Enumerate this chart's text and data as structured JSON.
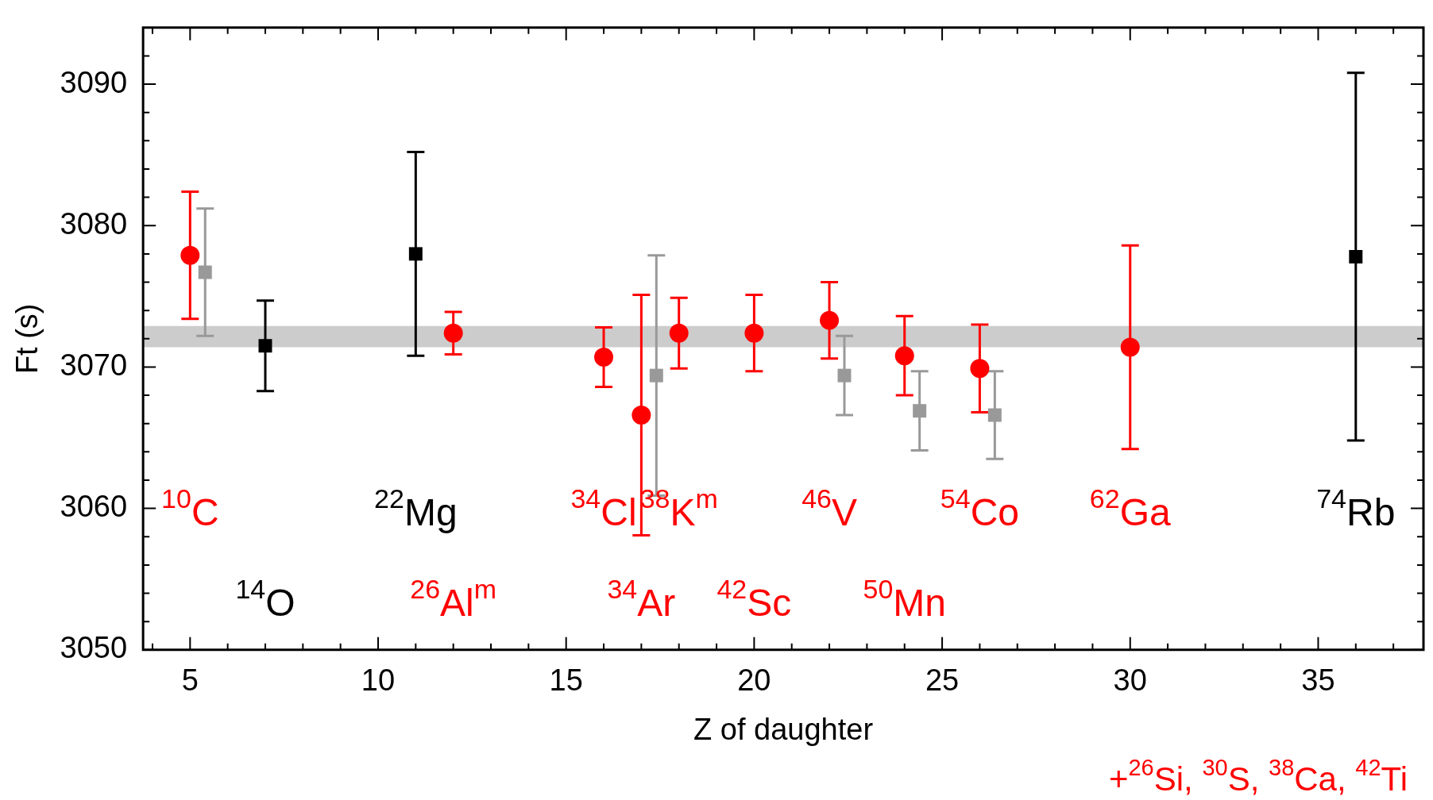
{
  "chart_data": {
    "type": "scatter",
    "xlabel": "Z of daughter",
    "ylabel": "Ft (s)",
    "xlim": [
      3.75,
      37.8
    ],
    "xticks": [
      {
        "value": 4,
        "label": null
      },
      5,
      {
        "value": 6,
        "label": null
      },
      {
        "value": 7,
        "label": null
      },
      {
        "value": 8,
        "label": null
      },
      {
        "value": 9,
        "label": null
      },
      10,
      {
        "value": 11,
        "label": null
      },
      {
        "value": 12,
        "label": null
      },
      {
        "value": 13,
        "label": null
      },
      {
        "value": 14,
        "label": null
      },
      15,
      {
        "value": 16,
        "label": null
      },
      {
        "value": 17,
        "label": null
      },
      {
        "value": 18,
        "label": null
      },
      {
        "value": 19,
        "label": null
      },
      20,
      {
        "value": 21,
        "label": null
      },
      {
        "value": 22,
        "label": null
      },
      {
        "value": 23,
        "label": null
      },
      {
        "value": 24,
        "label": null
      },
      25,
      {
        "value": 26,
        "label": null
      },
      {
        "value": 27,
        "label": null
      },
      {
        "value": 28,
        "label": null
      },
      {
        "value": 29,
        "label": null
      },
      30,
      {
        "value": 31,
        "label": null
      },
      {
        "value": 32,
        "label": null
      },
      {
        "value": 33,
        "label": null
      },
      {
        "value": 34,
        "label": null
      },
      35,
      {
        "value": 36,
        "label": null
      },
      {
        "value": 37,
        "label": null
      }
    ],
    "ylim": [
      3050,
      3094
    ],
    "yticks": [
      3050,
      {
        "value": 3052,
        "label": null
      },
      {
        "value": 3054,
        "label": null
      },
      {
        "value": 3056,
        "label": null
      },
      {
        "value": 3058,
        "label": null
      },
      3060,
      {
        "value": 3062,
        "label": null
      },
      {
        "value": 3064,
        "label": null
      },
      {
        "value": 3066,
        "label": null
      },
      {
        "value": 3068,
        "label": null
      },
      3070,
      {
        "value": 3072,
        "label": null
      },
      {
        "value": 3074,
        "label": null
      },
      {
        "value": 3076,
        "label": null
      },
      {
        "value": 3078,
        "label": null
      },
      3080,
      {
        "value": 3082,
        "label": null
      },
      {
        "value": 3084,
        "label": null
      },
      {
        "value": 3086,
        "label": null
      },
      {
        "value": 3088,
        "label": null
      },
      3090,
      {
        "value": 3092,
        "label": null
      }
    ],
    "series": [
      {
        "color": "#ff0000",
        "marker": "circle",
        "x": [
          5,
          12,
          16,
          17,
          18,
          20,
          22,
          24,
          26,
          30
        ],
        "values": [
          3077.9,
          3072.4,
          3070.7,
          3066.6,
          3072.4,
          3072.4,
          3073.3,
          3070.8,
          3069.9,
          3071.4
        ],
        "errors": [
          4.5,
          1.5,
          2.1,
          8.5,
          2.5,
          2.7,
          2.7,
          2.8,
          3.1,
          7.2
        ]
      },
      {
        "color": "#000000",
        "marker": "square",
        "x": [
          7,
          11,
          36
        ],
        "values": [
          3071.5,
          3078.0,
          3077.8
        ],
        "errors": [
          3.2,
          7.2,
          13.0
        ]
      },
      {
        "color": "#999999",
        "marker": "square",
        "x": [
          5.4,
          17.4,
          22.4,
          24.4,
          26.4
        ],
        "values": [
          3076.7,
          3069.4,
          3069.4,
          3066.9,
          3066.6
        ],
        "errors": [
          4.5,
          8.5,
          2.8,
          2.8,
          3.1
        ]
      }
    ],
    "bands": [
      {
        "axis": "y",
        "from": 3071.4,
        "to": 3072.9,
        "color": "#cccccc"
      }
    ],
    "annotations": [
      "$^{10}$C",
      "$^{14}$O",
      "$^{22}$Mg",
      "$^{26}$Al$^{m}$",
      "$^{34}$Cl",
      "$^{34}$Ar",
      "$^{38}$K$^{m}$",
      "$^{42}$Sc",
      "$^{46}$V",
      "$^{50}$Mn",
      "$^{54}$Co",
      "$^{62}$Ga",
      "$^{74}$Rb",
      "+$^{26}$Si, $^{30}$S, $^{38}$Ca, $^{42}$Ti"
    ]
  }
}
